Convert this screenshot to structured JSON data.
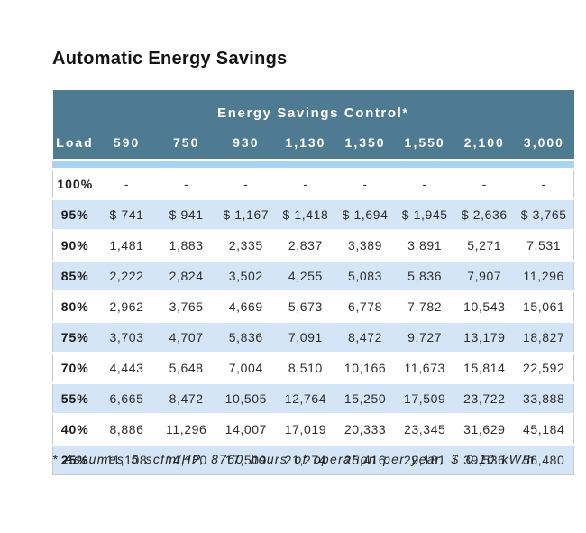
{
  "page": {
    "title": "Automatic Energy Savings",
    "footnote": "* Assumes 5 scfm/HP, 8760 hours of operation per year, $ 0.10 kW/h"
  },
  "chart_data": {
    "type": "table",
    "title": "Automatic Energy Savings",
    "group_header": "Energy Savings Control*",
    "columns": [
      "Load",
      "590",
      "750",
      "930",
      "1,130",
      "1,350",
      "1,550",
      "2,100",
      "3,000"
    ],
    "rows": [
      {
        "load": "100%",
        "values": [
          "-",
          "-",
          "-",
          "-",
          "-",
          "-",
          "-",
          "-"
        ]
      },
      {
        "load": "95%",
        "values": [
          "$ 741",
          "$ 941",
          "$ 1,167",
          "$ 1,418",
          "$ 1,694",
          "$ 1,945",
          "$ 2,636",
          "$ 3,765"
        ]
      },
      {
        "load": "90%",
        "values": [
          "1,481",
          "1,883",
          "2,335",
          "2,837",
          "3,389",
          "3,891",
          "5,271",
          "7,531"
        ]
      },
      {
        "load": "85%",
        "values": [
          "2,222",
          "2,824",
          "3,502",
          "4,255",
          "5,083",
          "5,836",
          "7,907",
          "11,296"
        ]
      },
      {
        "load": "80%",
        "values": [
          "2,962",
          "3,765",
          "4,669",
          "5,673",
          "6,778",
          "7,782",
          "10,543",
          "15,061"
        ]
      },
      {
        "load": "75%",
        "values": [
          "3,703",
          "4,707",
          "5,836",
          "7,091",
          "8,472",
          "9,727",
          "13,179",
          "18,827"
        ]
      },
      {
        "load": "70%",
        "values": [
          "4,443",
          "5,648",
          "7,004",
          "8,510",
          "10,166",
          "11,673",
          "15,814",
          "22,592"
        ]
      },
      {
        "load": "55%",
        "values": [
          "6,665",
          "8,472",
          "10,505",
          "12,764",
          "15,250",
          "17,509",
          "23,722",
          "33,888"
        ]
      },
      {
        "load": "40%",
        "values": [
          "8,886",
          "11,296",
          "14,007",
          "17,019",
          "20,333",
          "23,345",
          "31,629",
          "45,184"
        ]
      },
      {
        "load": "25%",
        "values": [
          "11,108",
          "14,120",
          "17,509",
          "21,274",
          "25,416",
          "29,181",
          "39,536",
          "56,480"
        ]
      }
    ],
    "footnote": "* Assumes 5 scfm/HP, 8760 hours of operation per year, $ 0.10 kW/h"
  },
  "colors": {
    "header_bg": "#4e7a92",
    "header_text": "#ffffff",
    "accent_stripe": "#a9d4f1",
    "row_bg": "#ffffff",
    "row_alt_bg": "#d3e5f6",
    "body_text": "#2d2d2d",
    "table_border": "#c8ccd0"
  }
}
